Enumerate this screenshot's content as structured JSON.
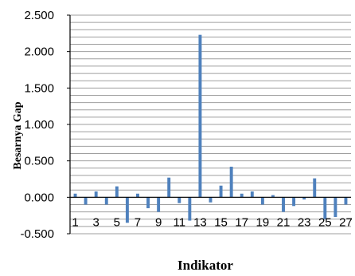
{
  "chart_data": {
    "type": "bar",
    "title": "",
    "xlabel": "Indikator",
    "ylabel": "Besarnya Gap",
    "ylim": [
      -0.5,
      2.5
    ],
    "y_tick_labels": [
      "2.500",
      "2.000",
      "1.500",
      "1.000",
      "0.500",
      "0.000",
      "-0.500"
    ],
    "y_tick_values": [
      2.5,
      2.0,
      1.5,
      1.0,
      0.5,
      0.0,
      -0.5
    ],
    "x_tick_labels": [
      "1",
      "3",
      "5",
      "7",
      "9",
      "11",
      "13",
      "15",
      "17",
      "19",
      "21",
      "23",
      "25",
      "27"
    ],
    "categories": [
      "1",
      "2",
      "3",
      "4",
      "5",
      "6",
      "7",
      "8",
      "9",
      "10",
      "11",
      "12",
      "13",
      "14",
      "15",
      "16",
      "17",
      "18",
      "19",
      "20",
      "21",
      "22",
      "23",
      "24",
      "25",
      "26",
      "27"
    ],
    "values": [
      0.05,
      -0.1,
      0.08,
      -0.1,
      0.15,
      -0.35,
      0.05,
      -0.15,
      -0.2,
      0.27,
      -0.08,
      -0.32,
      2.23,
      -0.07,
      0.16,
      0.42,
      0.05,
      0.08,
      -0.1,
      0.03,
      -0.2,
      -0.12,
      -0.03,
      0.26,
      -0.3,
      -0.27,
      -0.1
    ],
    "grid": true,
    "bar_color": "#4f81bd",
    "grid_color": "#9f9f9f"
  }
}
